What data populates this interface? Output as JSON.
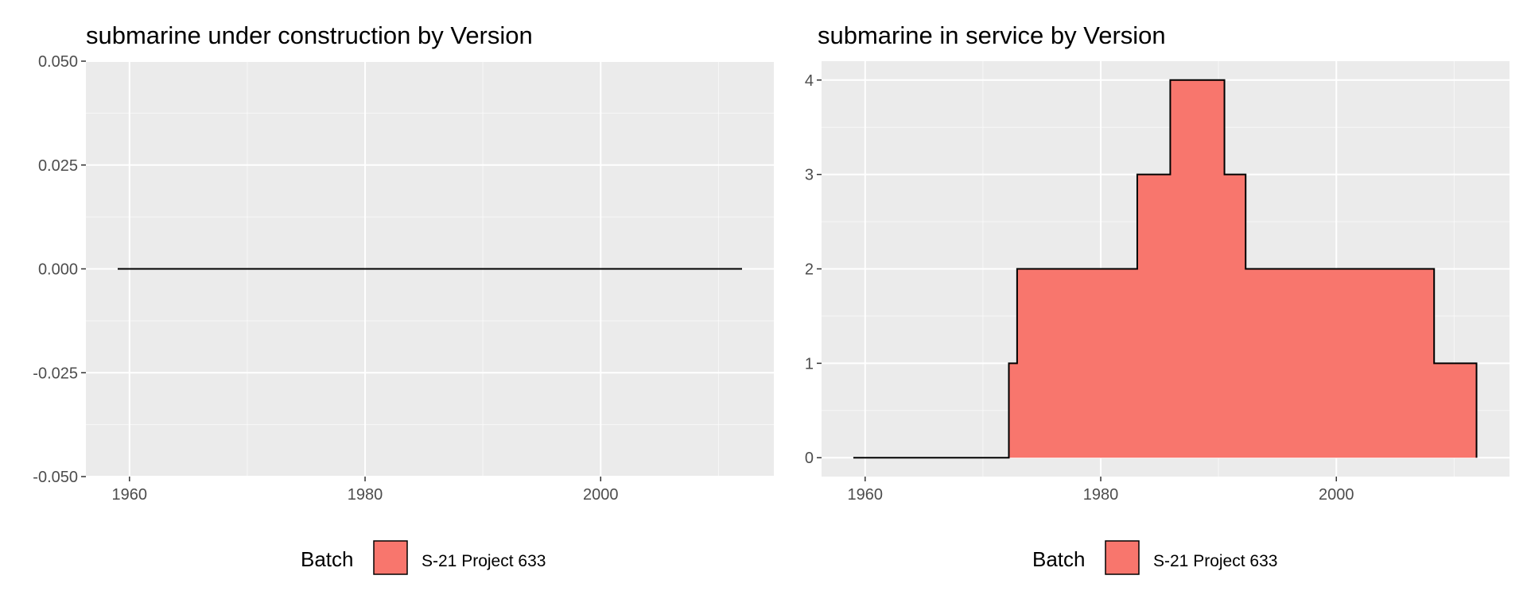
{
  "colors": {
    "panel_background": "#ebebeb",
    "grid_major": "#ffffff",
    "fill": "#f8766d",
    "line": "#000000",
    "tick_text": "#4d4d4d"
  },
  "chart_data": [
    {
      "type": "area",
      "title": "submarine under construction by Version",
      "xlabel": "",
      "ylabel": "",
      "xlim": [
        1956.3,
        2014.7
      ],
      "ylim": [
        -0.05,
        0.05
      ],
      "x_ticks": [
        1960,
        1980,
        2000
      ],
      "x_tick_labels": [
        "1960",
        "1980",
        "2000"
      ],
      "y_ticks": [
        -0.05,
        -0.025,
        0,
        0.025,
        0.05
      ],
      "y_tick_labels": [
        "-0.050",
        "-0.025",
        "0.000",
        "0.025",
        "0.050"
      ],
      "grid": true,
      "legend_position": "bottom",
      "legend_title": "Batch",
      "series": [
        {
          "name": "S-21 Project 633",
          "x": [
            1959,
            2012
          ],
          "y": [
            0,
            0
          ]
        }
      ]
    },
    {
      "type": "area",
      "title": "submarine in service by Version",
      "xlabel": "",
      "ylabel": "",
      "xlim": [
        1956.3,
        2014.7
      ],
      "ylim": [
        -0.2,
        4.2
      ],
      "x_ticks": [
        1960,
        1980,
        2000
      ],
      "x_tick_labels": [
        "1960",
        "1980",
        "2000"
      ],
      "y_ticks": [
        0,
        1,
        2,
        3,
        4
      ],
      "y_tick_labels": [
        "0",
        "1",
        "2",
        "3",
        "4"
      ],
      "grid": true,
      "legend_position": "bottom",
      "legend_title": "Batch",
      "series": [
        {
          "name": "S-21 Project 633",
          "x": [
            1959,
            1972.2,
            1972.2,
            1972.9,
            1972.9,
            1983.1,
            1983.1,
            1985.9,
            1985.9,
            1990.5,
            1990.5,
            1992.3,
            1992.3,
            2008.3,
            2008.3,
            2011.9,
            2011.9
          ],
          "y": [
            0,
            0,
            1,
            1,
            2,
            2,
            3,
            3,
            4,
            4,
            3,
            3,
            2,
            2,
            1,
            1,
            0
          ]
        }
      ]
    }
  ]
}
